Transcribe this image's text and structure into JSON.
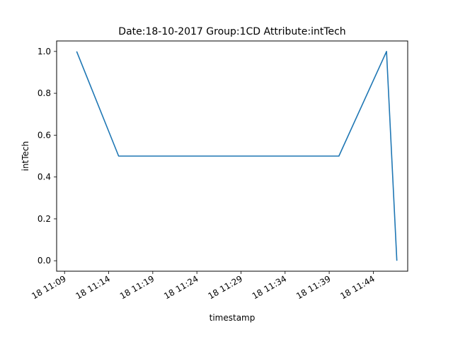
{
  "chart_data": {
    "type": "line",
    "title": "Date:18-10-2017  Group:1CD Attribute:intTech",
    "xlabel": "timestamp",
    "ylabel": "intTech",
    "x_tick_labels": [
      "18 11:09",
      "18 11:14",
      "18 11:19",
      "18 11:24",
      "18 11:29",
      "18 11:34",
      "18 11:39",
      "18 11:44"
    ],
    "x_tick_values_min": [
      669,
      674,
      679,
      684,
      689,
      694,
      699,
      704
    ],
    "xlim_min": [
      668.1,
      707.9
    ],
    "y_tick_labels": [
      "0.0",
      "0.2",
      "0.4",
      "0.6",
      "0.8",
      "1.0"
    ],
    "y_tick_values": [
      0.0,
      0.2,
      0.4,
      0.6,
      0.8,
      1.0
    ],
    "ylim": [
      -0.05,
      1.05
    ],
    "grid": false,
    "legend": "none",
    "series": [
      {
        "color": "#1f77b4",
        "x": [
          "18 11:10:22",
          "18 11:15:08",
          "18 11:40:06",
          "18 11:45:30",
          "18 11:46:40"
        ],
        "x_min": [
          670.37,
          675.13,
          700.1,
          705.5,
          706.67
        ],
        "values": [
          1.0,
          0.5,
          0.5,
          1.0,
          0.0
        ]
      }
    ]
  }
}
